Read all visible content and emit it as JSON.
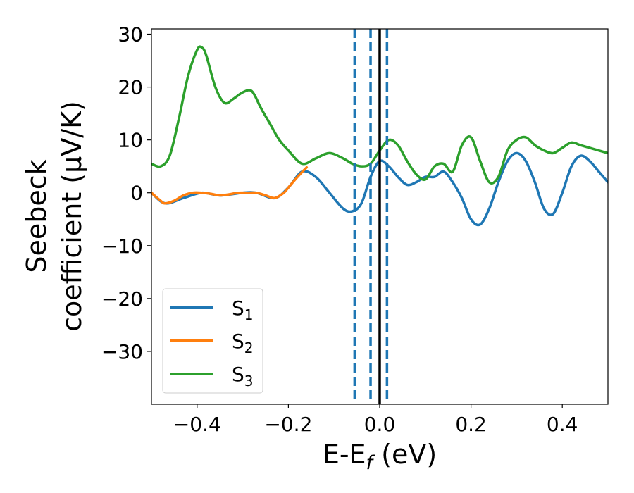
{
  "chart_data": {
    "type": "line",
    "xlabel": "E-E",
    "xlabel_sub": "f",
    "xlabel_unit": " (eV)",
    "ylabel_line1": "Seebeck",
    "ylabel_line2": "coefficient  (μV/K)",
    "xlim": [
      -0.5,
      0.5
    ],
    "ylim": [
      -40,
      31
    ],
    "xticks": [
      -0.4,
      -0.2,
      0.0,
      0.2,
      0.4
    ],
    "xtick_labels": [
      "−0.4",
      "−0.2",
      "0.0",
      "0.2",
      "0.4"
    ],
    "yticks": [
      30,
      20,
      10,
      0,
      -10,
      -20,
      -30
    ],
    "ytick_labels": [
      "30",
      "20",
      "10",
      "0",
      "−10",
      "−20",
      "−30"
    ],
    "grid": false,
    "legend_position": "lower-left",
    "colors": {
      "s1": "#1f77b4",
      "s2": "#ff7f0e",
      "s3": "#2ca02c",
      "fermi": "#000000",
      "dashed": "#1f77b4"
    },
    "series": [
      {
        "name": "S",
        "sub": "1",
        "color": "#1f77b4",
        "x": [
          -0.5,
          -0.47,
          -0.43,
          -0.39,
          -0.35,
          -0.3,
          -0.27,
          -0.23,
          -0.2,
          -0.17,
          -0.14,
          -0.11,
          -0.08,
          -0.06,
          -0.04,
          -0.02,
          0.0,
          0.02,
          0.04,
          0.06,
          0.08,
          0.1,
          0.12,
          0.14,
          0.16,
          0.18,
          0.2,
          0.22,
          0.24,
          0.26,
          0.28,
          0.3,
          0.32,
          0.34,
          0.36,
          0.38,
          0.4,
          0.42,
          0.44,
          0.46,
          0.48,
          0.5
        ],
        "y": [
          0,
          -2,
          -1,
          0,
          -0.5,
          0,
          0,
          -1,
          1,
          4,
          3,
          0,
          -3,
          -3.5,
          -2,
          3,
          6,
          5,
          3,
          1.5,
          2,
          3,
          3,
          4,
          2,
          -1,
          -5,
          -6,
          -3,
          2,
          6,
          7.5,
          6,
          2,
          -3,
          -4,
          0,
          5,
          7,
          6,
          4,
          2
        ]
      },
      {
        "name": "S",
        "sub": "2",
        "color": "#ff7f0e",
        "x": [
          -0.5,
          -0.48,
          -0.47,
          -0.45,
          -0.43,
          -0.41,
          -0.39,
          -0.37,
          -0.35,
          -0.33,
          -0.31,
          -0.29,
          -0.27,
          -0.25,
          -0.23,
          -0.21,
          -0.2,
          -0.18,
          -0.16
        ],
        "y": [
          0,
          -1.5,
          -2,
          -1.5,
          -0.5,
          0,
          0,
          -0.2,
          -0.5,
          -0.3,
          0,
          0,
          0,
          -0.5,
          -1,
          0,
          1,
          3,
          4.8
        ]
      },
      {
        "name": "S",
        "sub": "3",
        "color": "#2ca02c",
        "x": [
          -0.5,
          -0.48,
          -0.46,
          -0.44,
          -0.42,
          -0.4,
          -0.39,
          -0.38,
          -0.36,
          -0.34,
          -0.32,
          -0.3,
          -0.28,
          -0.26,
          -0.24,
          -0.22,
          -0.2,
          -0.17,
          -0.14,
          -0.11,
          -0.08,
          -0.06,
          -0.04,
          -0.02,
          0.0,
          0.02,
          0.04,
          0.06,
          0.08,
          0.1,
          0.12,
          0.14,
          0.16,
          0.18,
          0.2,
          0.22,
          0.24,
          0.26,
          0.28,
          0.3,
          0.32,
          0.34,
          0.36,
          0.38,
          0.4,
          0.42,
          0.44,
          0.46,
          0.48,
          0.5
        ],
        "y": [
          5.5,
          5,
          7,
          14,
          22,
          27,
          27.5,
          26,
          20,
          17,
          17.8,
          19,
          19.2,
          16,
          13,
          10,
          8,
          5.5,
          6.5,
          7.5,
          6.5,
          5.5,
          5,
          5.5,
          8,
          10,
          9,
          6,
          3.5,
          2.5,
          5,
          5.5,
          4,
          9,
          10.5,
          6,
          2,
          3,
          8,
          10,
          10.5,
          9,
          8,
          7.5,
          8.5,
          9.5,
          9,
          8.5,
          8,
          7.5
        ]
      }
    ],
    "vertical_lines": [
      {
        "x": -0.055,
        "style": "dashed",
        "color": "#1f77b4"
      },
      {
        "x": -0.02,
        "style": "dashed",
        "color": "#1f77b4"
      },
      {
        "x": 0.0,
        "style": "solid",
        "color": "#000000"
      },
      {
        "x": 0.016,
        "style": "dashed",
        "color": "#1f77b4"
      }
    ]
  }
}
